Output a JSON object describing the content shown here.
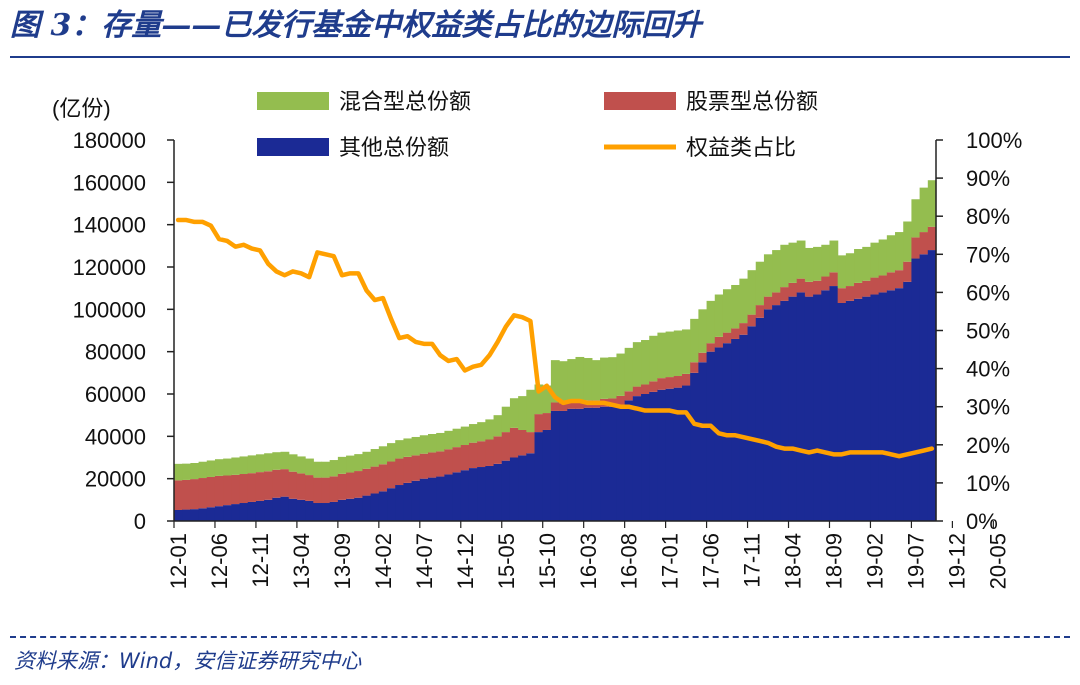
{
  "header": {
    "title": "图 3：存量——已发行基金中权益类占比的边际回升"
  },
  "footer": {
    "source": "资料来源：Wind，安信证券研究中心"
  },
  "colors": {
    "mixed": "#94bd4f",
    "stock": "#c0504d",
    "other": "#1b2a95",
    "ratio": "#ffa000",
    "accent": "#1f3c8c"
  },
  "chart_data": {
    "type": "area",
    "ylabel_left": "(亿份)",
    "y_left_lim": [
      0,
      180000
    ],
    "y_left_ticks": [
      0,
      20000,
      40000,
      60000,
      80000,
      100000,
      120000,
      140000,
      160000,
      180000
    ],
    "y_right_lim": [
      0,
      100
    ],
    "y_right_ticks": [
      "0%",
      "10%",
      "20%",
      "30%",
      "40%",
      "50%",
      "60%",
      "70%",
      "80%",
      "90%",
      "100%"
    ],
    "x_tick_labels": [
      "12-01",
      "12-06",
      "12-11",
      "13-04",
      "13-09",
      "14-02",
      "14-07",
      "14-12",
      "15-05",
      "15-10",
      "16-03",
      "16-08",
      "17-01",
      "17-06",
      "17-11",
      "18-04",
      "18-09",
      "19-02",
      "19-07",
      "19-12",
      "20-05"
    ],
    "legend": [
      {
        "key": "mixed",
        "label": "混合型总份额"
      },
      {
        "key": "stock",
        "label": "股票型总份额"
      },
      {
        "key": "other",
        "label": "其他总份额"
      },
      {
        "key": "ratio",
        "label": "权益类占比"
      }
    ],
    "legend_position": "top",
    "grid": false,
    "x_start": "2012-01",
    "series": [
      {
        "key": "other",
        "values": [
          5200,
          5400,
          5600,
          6000,
          6500,
          7000,
          7500,
          8000,
          8500,
          9000,
          9500,
          10000,
          11000,
          11500,
          10500,
          10000,
          9500,
          8500,
          8500,
          9000,
          10000,
          10500,
          11000,
          12000,
          13000,
          14000,
          15500,
          17000,
          18000,
          19000,
          20000,
          20500,
          21000,
          22000,
          23000,
          24000,
          25000,
          25500,
          26000,
          27000,
          28500,
          30000,
          31000,
          32000,
          42000,
          43000,
          52000,
          52000,
          53000,
          53000,
          53500,
          53500,
          54000,
          54000,
          55000,
          57000,
          59000,
          60000,
          61000,
          62000,
          62500,
          63000,
          64000,
          70000,
          75000,
          80000,
          82000,
          84000,
          86000,
          88000,
          92000,
          96000,
          100000,
          102000,
          104000,
          106000,
          108000,
          106000,
          107000,
          109000,
          111000,
          103000,
          104000,
          105000,
          106000,
          107000,
          108000,
          109000,
          110000,
          113000,
          124000,
          126000,
          128000
        ]
      },
      {
        "key": "stock",
        "values": [
          14000,
          14000,
          14200,
          14300,
          14300,
          14300,
          14000,
          13800,
          13700,
          13600,
          13600,
          13500,
          13200,
          13000,
          12800,
          12500,
          12200,
          12000,
          12000,
          12100,
          12300,
          12400,
          12600,
          12700,
          12700,
          12800,
          12600,
          12500,
          12300,
          12000,
          11800,
          11900,
          11900,
          11900,
          11900,
          11900,
          12000,
          12200,
          12500,
          13000,
          13500,
          14000,
          12000,
          10000,
          8500,
          8000,
          4000,
          3500,
          3500,
          3500,
          3500,
          3500,
          3700,
          3900,
          4100,
          4300,
          4500,
          4500,
          5000,
          5500,
          5500,
          5500,
          5500,
          5000,
          4500,
          4000,
          5000,
          5000,
          5000,
          5500,
          5500,
          6000,
          6000,
          6000,
          6500,
          6500,
          6500,
          7000,
          6500,
          6500,
          6500,
          7000,
          7000,
          7500,
          7500,
          8000,
          8000,
          8500,
          8500,
          9500,
          10000,
          10500,
          11000
        ]
      },
      {
        "key": "mixed",
        "values": [
          7800,
          7700,
          7600,
          7700,
          7800,
          7900,
          8000,
          8200,
          8300,
          8400,
          8400,
          8500,
          8300,
          8200,
          8200,
          8000,
          7800,
          7500,
          7500,
          7700,
          8000,
          8000,
          8000,
          8000,
          8300,
          8500,
          8700,
          8700,
          8700,
          8700,
          8700,
          8700,
          8700,
          8700,
          8700,
          8700,
          8800,
          9000,
          9500,
          10000,
          12000,
          14000,
          16000,
          20000,
          14000,
          13000,
          20000,
          20000,
          20000,
          21000,
          20000,
          19000,
          19500,
          19500,
          20000,
          20500,
          21000,
          21000,
          21500,
          21500,
          21500,
          21500,
          21000,
          20500,
          20500,
          20000,
          20000,
          20500,
          20500,
          21000,
          21000,
          20500,
          20000,
          20000,
          20000,
          19000,
          18000,
          16000,
          16000,
          15000,
          15000,
          15500,
          15500,
          16000,
          16000,
          16500,
          17000,
          17500,
          18000,
          19000,
          18000,
          21000,
          22000
        ]
      },
      {
        "key": "ratio",
        "values": [
          79,
          79,
          78.5,
          78.5,
          77.5,
          74,
          73.5,
          72,
          72.5,
          71.5,
          71,
          67.5,
          65.5,
          64.5,
          65.5,
          65,
          64,
          70.5,
          70,
          69.5,
          64.5,
          65,
          65,
          60.5,
          58,
          58.5,
          53,
          48,
          48.5,
          47,
          46.5,
          46.5,
          43.5,
          42,
          42.5,
          39.5,
          40.5,
          41,
          43.5,
          47,
          51,
          54,
          53.5,
          52.5,
          34,
          35.5,
          32.5,
          31,
          31.5,
          31.5,
          31,
          31,
          31,
          30.5,
          30,
          30,
          29.5,
          29,
          29,
          29,
          29,
          28.5,
          28.5,
          25.5,
          25,
          25,
          23,
          22.5,
          22.5,
          22,
          21.5,
          21,
          20.5,
          19.5,
          19,
          19,
          18.5,
          18,
          18.5,
          18,
          17.5,
          17.5,
          18,
          18,
          18,
          18,
          18,
          17.5,
          17,
          17.5,
          18,
          18.5,
          19
        ]
      }
    ]
  }
}
